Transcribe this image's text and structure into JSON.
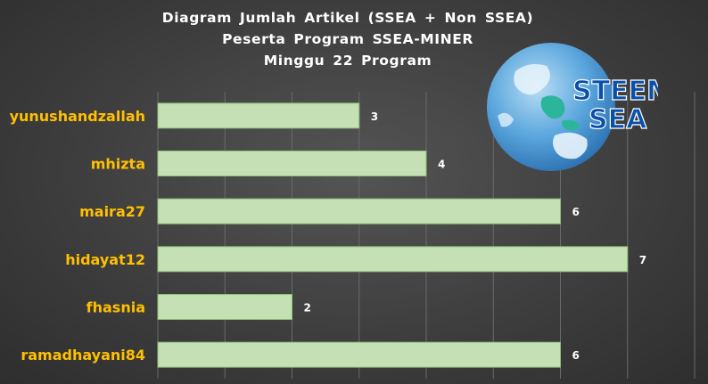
{
  "chart_data": {
    "type": "bar",
    "orientation": "horizontal",
    "title_lines": [
      "Diagram Jumlah Artikel (SSEA + Non SSEA)",
      "Peserta Program SSEA-MINER",
      "Minggu 22 Program"
    ],
    "categories": [
      "yunushandzallah",
      "mhizta",
      "maira27",
      "hidayat12",
      "fhasnia",
      "ramadhayani84"
    ],
    "values": [
      3,
      4,
      6,
      7,
      2,
      6
    ],
    "xlim": [
      0,
      8
    ],
    "grid": true,
    "bar_color": "#c5e0b4",
    "label_color": "#ffc000"
  },
  "logo": {
    "line1": "STEEM",
    "line2": "SEA",
    "text_color": "#0a4fa8"
  }
}
